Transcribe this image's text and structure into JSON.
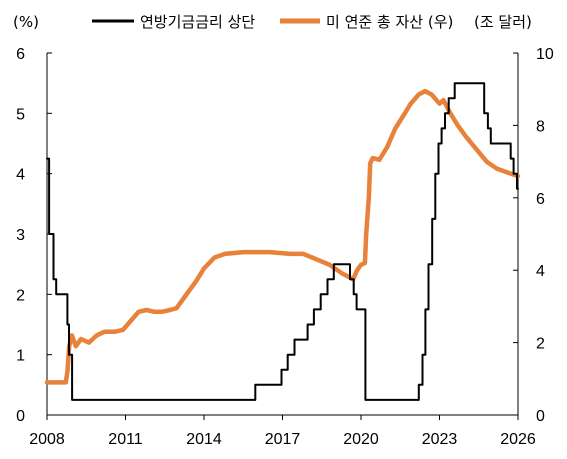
{
  "chart_data": {
    "type": "line",
    "title": "",
    "xlabel": "",
    "left_axis": {
      "unit_label": "(%)",
      "ylim": [
        0,
        6
      ],
      "ticks": [
        "0",
        "1",
        "2",
        "3",
        "4",
        "5",
        "6"
      ]
    },
    "right_axis": {
      "unit_label": "(조 달러)",
      "ylim": [
        0,
        10
      ],
      "ticks": [
        "0",
        "2",
        "4",
        "6",
        "8",
        "10"
      ]
    },
    "x_axis": {
      "xlim": [
        2008,
        2026
      ],
      "ticks": [
        "2008",
        "2011",
        "2014",
        "2017",
        "2020",
        "2023",
        "2026"
      ]
    },
    "grid": false,
    "legend_position": "top",
    "series": [
      {
        "name": "연방기금금리 상단",
        "axis": "left",
        "color": "#000000",
        "style": "step",
        "points": [
          [
            2008.0,
            4.25
          ],
          [
            2008.08,
            3.0
          ],
          [
            2008.25,
            2.25
          ],
          [
            2008.35,
            2.0
          ],
          [
            2008.78,
            1.5
          ],
          [
            2008.84,
            1.0
          ],
          [
            2008.96,
            0.25
          ],
          [
            2015.96,
            0.5
          ],
          [
            2016.96,
            0.75
          ],
          [
            2017.2,
            1.0
          ],
          [
            2017.46,
            1.25
          ],
          [
            2017.96,
            1.5
          ],
          [
            2018.2,
            1.75
          ],
          [
            2018.46,
            2.0
          ],
          [
            2018.72,
            2.25
          ],
          [
            2018.96,
            2.5
          ],
          [
            2019.58,
            2.25
          ],
          [
            2019.72,
            2.0
          ],
          [
            2019.83,
            1.75
          ],
          [
            2020.17,
            0.25
          ],
          [
            2022.21,
            0.5
          ],
          [
            2022.35,
            1.0
          ],
          [
            2022.46,
            1.75
          ],
          [
            2022.58,
            2.5
          ],
          [
            2022.72,
            3.25
          ],
          [
            2022.84,
            4.0
          ],
          [
            2022.96,
            4.5
          ],
          [
            2023.08,
            4.75
          ],
          [
            2023.21,
            5.0
          ],
          [
            2023.35,
            5.25
          ],
          [
            2023.58,
            5.5
          ],
          [
            2024.71,
            5.0
          ],
          [
            2024.85,
            4.75
          ],
          [
            2024.96,
            4.5
          ],
          [
            2025.72,
            4.25
          ],
          [
            2025.83,
            4.0
          ],
          [
            2025.96,
            3.75
          ],
          [
            2026.0,
            3.75
          ]
        ]
      },
      {
        "name": "미 연준 총 자산 (우)",
        "axis": "right",
        "color": "#e8823a",
        "style": "line",
        "points": [
          [
            2008.0,
            0.9
          ],
          [
            2008.5,
            0.9
          ],
          [
            2008.72,
            0.9
          ],
          [
            2008.78,
            1.2
          ],
          [
            2008.85,
            1.9
          ],
          [
            2008.95,
            2.2
          ],
          [
            2009.1,
            1.9
          ],
          [
            2009.3,
            2.1
          ],
          [
            2009.6,
            2.0
          ],
          [
            2009.9,
            2.2
          ],
          [
            2010.2,
            2.3
          ],
          [
            2010.6,
            2.3
          ],
          [
            2010.9,
            2.35
          ],
          [
            2011.2,
            2.6
          ],
          [
            2011.5,
            2.85
          ],
          [
            2011.8,
            2.9
          ],
          [
            2012.1,
            2.85
          ],
          [
            2012.4,
            2.85
          ],
          [
            2012.7,
            2.9
          ],
          [
            2012.95,
            2.95
          ],
          [
            2013.3,
            3.3
          ],
          [
            2013.7,
            3.7
          ],
          [
            2014.0,
            4.05
          ],
          [
            2014.4,
            4.35
          ],
          [
            2014.8,
            4.45
          ],
          [
            2015.5,
            4.5
          ],
          [
            2016.5,
            4.5
          ],
          [
            2017.3,
            4.45
          ],
          [
            2017.8,
            4.45
          ],
          [
            2018.3,
            4.3
          ],
          [
            2018.8,
            4.15
          ],
          [
            2019.3,
            3.9
          ],
          [
            2019.7,
            3.75
          ],
          [
            2019.85,
            4.0
          ],
          [
            2020.0,
            4.15
          ],
          [
            2020.15,
            4.2
          ],
          [
            2020.2,
            5.0
          ],
          [
            2020.3,
            6.0
          ],
          [
            2020.35,
            6.95
          ],
          [
            2020.45,
            7.1
          ],
          [
            2020.7,
            7.05
          ],
          [
            2021.0,
            7.4
          ],
          [
            2021.3,
            7.9
          ],
          [
            2021.6,
            8.25
          ],
          [
            2021.9,
            8.6
          ],
          [
            2022.2,
            8.85
          ],
          [
            2022.45,
            8.95
          ],
          [
            2022.7,
            8.85
          ],
          [
            2023.0,
            8.6
          ],
          [
            2023.15,
            8.7
          ],
          [
            2023.4,
            8.35
          ],
          [
            2023.7,
            8.0
          ],
          [
            2024.0,
            7.7
          ],
          [
            2024.4,
            7.35
          ],
          [
            2024.8,
            7.0
          ],
          [
            2025.2,
            6.8
          ],
          [
            2025.6,
            6.7
          ],
          [
            2026.0,
            6.6
          ]
        ]
      }
    ]
  }
}
